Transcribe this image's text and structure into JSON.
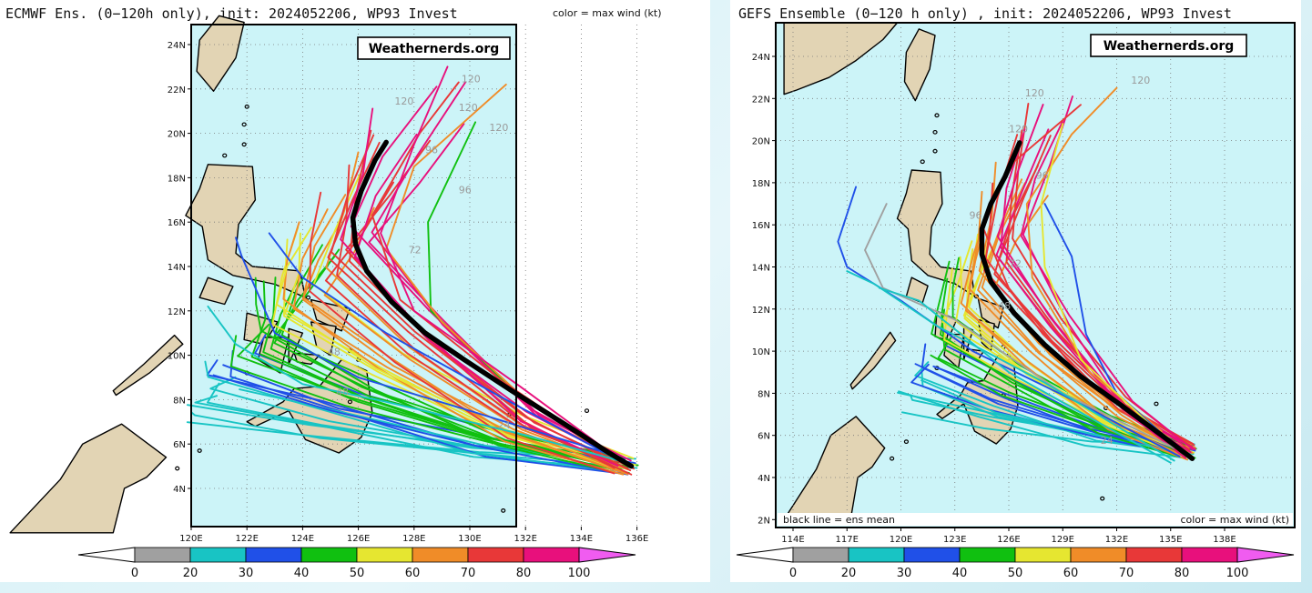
{
  "left_panel": {
    "title": "ECMWF Ens. (0−120h only), init: 2024052206, WP93 Invest",
    "color_note": "color = max wind (kt)",
    "watermark": "Weathernerds.org",
    "lat_labels": [
      "4N",
      "6N",
      "8N",
      "10N",
      "12N",
      "14N",
      "16N",
      "18N",
      "20N",
      "22N",
      "24N"
    ],
    "lon_labels": [
      "120E",
      "122E",
      "124E",
      "126E",
      "128E",
      "130E",
      "132E",
      "134E",
      "136E"
    ],
    "hour_labels": [
      "120",
      "120",
      "120",
      "120",
      "96",
      "96",
      "72",
      "48",
      "48",
      "24"
    ],
    "colorbar_ticks": [
      "0",
      "20",
      "30",
      "40",
      "50",
      "60",
      "70",
      "80",
      "100"
    ]
  },
  "right_panel": {
    "title": "GEFS Ensemble (0−120 h only) , init: 2024052206, WP93 Invest",
    "watermark": "Weathernerds.org",
    "bottom_left_note": "black line = ens mean",
    "bottom_right_note": "color = max wind (kt)",
    "lat_labels": [
      "2N",
      "4N",
      "6N",
      "8N",
      "10N",
      "12N",
      "14N",
      "16N",
      "18N",
      "20N",
      "22N",
      "24N"
    ],
    "lon_labels": [
      "114E",
      "117E",
      "120E",
      "123E",
      "126E",
      "129E",
      "132E",
      "135E",
      "138E"
    ],
    "hour_labels": [
      "120",
      "120",
      "120",
      "96",
      "96",
      "72",
      "48",
      "24"
    ],
    "colorbar_ticks": [
      "0",
      "20",
      "30",
      "40",
      "50",
      "60",
      "70",
      "80",
      "100"
    ]
  },
  "colorbar_colors": [
    "#a0a0a0",
    "#18c4c4",
    "#2050e8",
    "#10c010",
    "#e6e630",
    "#f08c28",
    "#e83838",
    "#e8107c"
  ],
  "colors": {
    "ocean": "#ccf4f8",
    "land": "#e2d4b4",
    "mean_track": "#000000"
  }
}
